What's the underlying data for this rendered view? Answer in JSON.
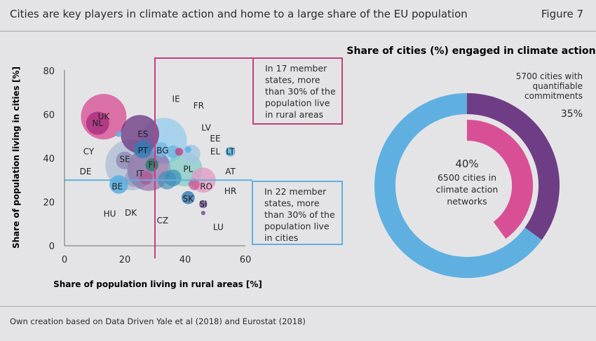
{
  "header": {
    "title": "Cities are key players in climate action and home to a large share of the EU population",
    "figure_label": "Figure 7"
  },
  "footer": {
    "source": "Own creation based on Data Driven Yale et al (2018) and Eurostat (2018)"
  },
  "colors": {
    "background": "#e4e4e6",
    "magenta": "#c2407f",
    "blue": "#5fb0e0",
    "purple": "#6f3d86",
    "pink": "#d94f95"
  },
  "chart_data": [
    {
      "type": "scatter",
      "subtype": "bubble",
      "xlabel": "Share of population living in rural areas [%]",
      "ylabel": "Share of population living in cities [%]",
      "xlim": [
        0,
        60
      ],
      "ylim": [
        0,
        80
      ],
      "xticks": [
        "0",
        "20",
        "40",
        "60"
      ],
      "yticks": [
        "0",
        "20",
        "40",
        "60",
        "80"
      ],
      "grid": false,
      "reference_lines": [
        {
          "axis": "x",
          "value": 30,
          "color": "#c2407f"
        },
        {
          "axis": "y",
          "value": 30,
          "color": "#5fb0e0"
        }
      ],
      "annotations": [
        {
          "id": "rural",
          "lines": [
            "In 17 member",
            "states, more",
            "than 30% of the",
            "population live",
            "in rural areas"
          ],
          "color": "#c2407f"
        },
        {
          "id": "cities",
          "lines": [
            "In 22 member",
            "states, more",
            "than 30% of the",
            "population live",
            "in cities"
          ],
          "color": "#5fb0e0"
        }
      ],
      "points": [
        {
          "label": "UK",
          "x": 13,
          "y": 59,
          "size": 66,
          "color": "#d94f95",
          "opacity": 0.78
        },
        {
          "label": "NL",
          "x": 11,
          "y": 56,
          "size": 17,
          "color": "#a6287a",
          "opacity": 0.75
        },
        {
          "label": "CY",
          "x": 18,
          "y": 51,
          "size": 1,
          "color": "#5fb0e0",
          "opacity": 0.9
        },
        {
          "label": "ES",
          "x": 25,
          "y": 51,
          "size": 47,
          "color": "#6f3d86",
          "opacity": 0.8
        },
        {
          "label": "FR",
          "x": 33,
          "y": 48,
          "size": 67,
          "color": "#8ecbee",
          "opacity": 0.7
        },
        {
          "label": "IE",
          "x": 36,
          "y": 43,
          "size": 5,
          "color": "#5fb0e0",
          "opacity": 0.7
        },
        {
          "label": "LV",
          "x": 38,
          "y": 43,
          "size": 2,
          "color": "#c2407f",
          "opacity": 0.8
        },
        {
          "label": "EE",
          "x": 41,
          "y": 44,
          "size": 1.3,
          "color": "#5fb0e0",
          "opacity": 0.9
        },
        {
          "label": "EL",
          "x": 42,
          "y": 42,
          "size": 11,
          "color": "#a4c7e2",
          "opacity": 0.8
        },
        {
          "label": "LT",
          "x": 55,
          "y": 43,
          "size": 3,
          "color": "#5fb0e0",
          "opacity": 0.9
        },
        {
          "label": "PT",
          "x": 26,
          "y": 44,
          "size": 10,
          "color": "#2c7fb6",
          "opacity": 0.8
        },
        {
          "label": "BG",
          "x": 32,
          "y": 44,
          "size": 7,
          "color": "#6fb8e6",
          "opacity": 0.75
        },
        {
          "label": "SE",
          "x": 20,
          "y": 39,
          "size": 10,
          "color": "#8e86b4",
          "opacity": 0.75
        },
        {
          "label": "DE",
          "x": 22,
          "y": 37,
          "size": 83,
          "color": "#a0b4ce",
          "opacity": 0.62
        },
        {
          "label": "FI",
          "x": 29,
          "y": 37,
          "size": 5.5,
          "color": "#2d7a6a",
          "opacity": 0.8
        },
        {
          "label": "IT",
          "x": 28,
          "y": 35,
          "size": 60,
          "color": "#7e4e94",
          "opacity": 0.55
        },
        {
          "label": "PL",
          "x": 40,
          "y": 35,
          "size": 38,
          "color": "#6ec8c0",
          "opacity": 0.6
        },
        {
          "label": "AT",
          "x": 36,
          "y": 31,
          "size": 9,
          "color": "#3a8db6",
          "opacity": 0.7
        },
        {
          "label": "BE",
          "x": 18,
          "y": 28,
          "size": 11,
          "color": "#5fb0e0",
          "opacity": 0.9
        },
        {
          "label": "DK",
          "x": 27,
          "y": 31,
          "size": 6,
          "color": "#c2407f",
          "opacity": 0.5
        },
        {
          "label": "HU",
          "x": 23,
          "y": 31,
          "size": 10,
          "color": "#8e86b4",
          "opacity": 0.5
        },
        {
          "label": "CZ",
          "x": 34,
          "y": 30,
          "size": 11,
          "color": "#4a90b8",
          "opacity": 0.7
        },
        {
          "label": "RO",
          "x": 46,
          "y": 30,
          "size": 20,
          "color": "#e497c3",
          "opacity": 0.75
        },
        {
          "label": "HR",
          "x": 43,
          "y": 28,
          "size": 4,
          "color": "#c2407f",
          "opacity": 0.6
        },
        {
          "label": "SK",
          "x": 41,
          "y": 22,
          "size": 5.5,
          "color": "#3e7fb3",
          "opacity": 0.85
        },
        {
          "label": "SI",
          "x": 46,
          "y": 19,
          "size": 2,
          "color": "#7a5a9e",
          "opacity": 0.85
        },
        {
          "label": "LU",
          "x": 46,
          "y": 15,
          "size": 0.6,
          "color": "#7a5a9e",
          "opacity": 0.9
        }
      ]
    },
    {
      "type": "pie",
      "subtype": "donut",
      "title": "Share of cities (%) engaged in climate action",
      "rings": [
        {
          "name": "5700 cities with quantifiable commitments",
          "label_lines": [
            "5700 cities with",
            "quantifiable",
            "commitments"
          ],
          "value_label": "35%",
          "value": 35,
          "color": "#6f3d86",
          "rest_color": "#5fb0e0"
        },
        {
          "name": "6500 cities in climate action networks",
          "label_lines": [
            "6500 cities in",
            "climate action",
            "networks"
          ],
          "value_label": "40%",
          "value": 40,
          "color": "#d94f95",
          "rest_color": "#e4e4e6"
        }
      ]
    }
  ]
}
